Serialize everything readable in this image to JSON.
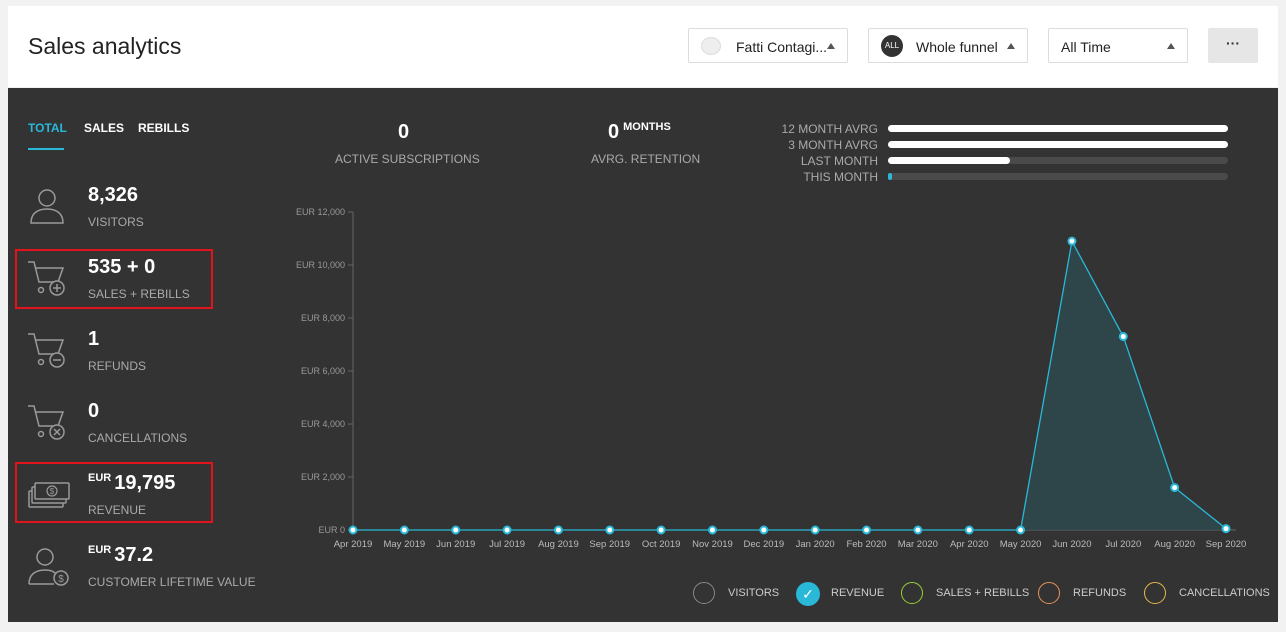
{
  "header": {
    "title": "Sales analytics",
    "project_label": "Fatti Contagi...",
    "funnel_badge": "ALL",
    "funnel_label": "Whole funnel",
    "time_label": "All Time",
    "more_label": "···"
  },
  "tabs": [
    {
      "label": "TOTAL",
      "active": true
    },
    {
      "label": "SALES",
      "active": false
    },
    {
      "label": "REBILLS",
      "active": false
    }
  ],
  "stats": {
    "visitors": {
      "value": "8,326",
      "label": "VISITORS",
      "icon": "user-icon"
    },
    "sales": {
      "value": "535 + 0",
      "label": "SALES + REBILLS",
      "icon": "cart-plus-icon"
    },
    "refunds": {
      "value": "1",
      "label": "REFUNDS",
      "icon": "cart-minus-icon"
    },
    "cancellations": {
      "value": "0",
      "label": "CANCELLATIONS",
      "icon": "cart-x-icon"
    },
    "revenue": {
      "currency": "EUR",
      "value": "19,795",
      "label": "REVENUE",
      "icon": "money-icon"
    },
    "clv": {
      "currency": "EUR",
      "value": "37.2",
      "label": "CUSTOMER LIFETIME VALUE",
      "icon": "user-dollar-icon"
    }
  },
  "summary": {
    "active_subscriptions": {
      "value": "0",
      "label": "ACTIVE SUBSCRIPTIONS"
    },
    "retention": {
      "value": "0",
      "unit": "MONTHS",
      "label": "AVRG. RETENTION"
    }
  },
  "averages": [
    {
      "label": "12 MONTH AVRG",
      "level": 1.0,
      "color": "#ffffff"
    },
    {
      "label": "3 MONTH AVRG",
      "level": 1.0,
      "color": "#ffffff"
    },
    {
      "label": "LAST MONTH",
      "level": 0.36,
      "color": "#ffffff"
    },
    {
      "label": "THIS MONTH",
      "level": 0.01,
      "color": "#29b8d8"
    }
  ],
  "legend": [
    {
      "label": "VISITORS",
      "active": false,
      "color": "#888888"
    },
    {
      "label": "REVENUE",
      "active": true,
      "color": "#29b8d8"
    },
    {
      "label": "SALES + REBILLS",
      "active": false,
      "color": "#9acd32"
    },
    {
      "label": "REFUNDS",
      "active": false,
      "color": "#e8935a"
    },
    {
      "label": "CANCELLATIONS",
      "active": false,
      "color": "#e8b84a"
    }
  ],
  "chart_data": {
    "type": "area",
    "categories": [
      "Apr 2019",
      "May 2019",
      "Jun 2019",
      "Jul 2019",
      "Aug 2019",
      "Sep 2019",
      "Oct 2019",
      "Nov 2019",
      "Dec 2019",
      "Jan 2020",
      "Feb 2020",
      "Mar 2020",
      "Apr 2020",
      "May 2020",
      "Jun 2020",
      "Jul 2020",
      "Aug 2020",
      "Sep 2020"
    ],
    "series": [
      {
        "name": "REVENUE",
        "values": [
          0,
          0,
          0,
          0,
          0,
          0,
          0,
          0,
          0,
          0,
          0,
          0,
          0,
          0,
          10900,
          7300,
          1600,
          50
        ],
        "color": "#29b8d8"
      }
    ],
    "y_ticks": [
      "EUR 0",
      "EUR 2,000",
      "EUR 4,000",
      "EUR 6,000",
      "EUR 8,000",
      "EUR 10,000",
      "EUR 12,000"
    ],
    "ylim": [
      0,
      12000
    ],
    "grid": false
  }
}
